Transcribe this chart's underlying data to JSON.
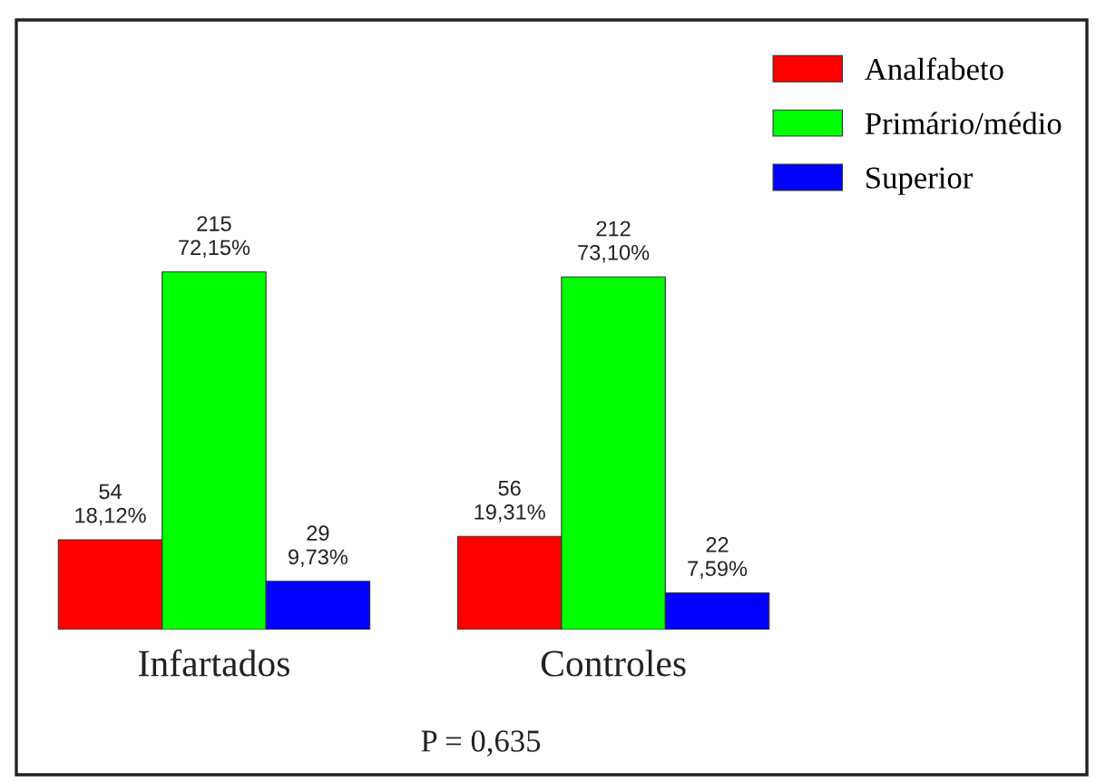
{
  "chart_data": {
    "type": "bar",
    "categories": [
      "Infartados",
      "Controles"
    ],
    "series": [
      {
        "name": "Analfabeto",
        "color": "#ff0000",
        "values": [
          54,
          56
        ],
        "value_labels": [
          "54\n18,12%",
          "56\n19,31%"
        ]
      },
      {
        "name": "Primário/médio",
        "color": "#00ff00",
        "values": [
          215,
          212
        ],
        "value_labels": [
          "215\n72,15%",
          "212\n73,10%"
        ]
      },
      {
        "name": "Superior",
        "color": "#0000ff",
        "values": [
          29,
          22
        ],
        "value_labels": [
          "29\n9,73%",
          "22\n7,59%"
        ]
      }
    ],
    "legend": "top right",
    "annotations": [
      "P = 0,635"
    ]
  }
}
